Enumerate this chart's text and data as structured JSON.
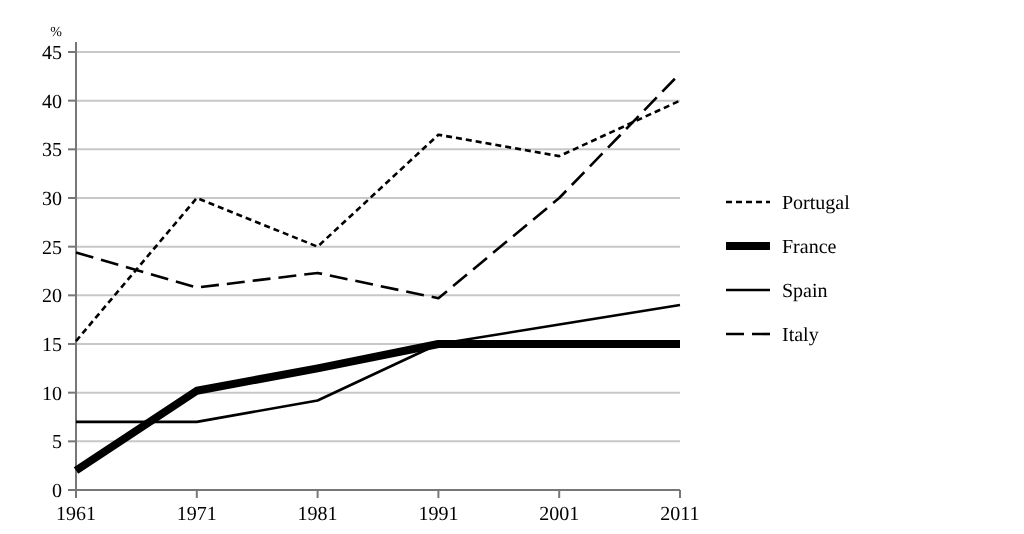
{
  "chart_data": {
    "type": "line",
    "ylabel": "%",
    "x": [
      1961,
      1971,
      1981,
      1991,
      2001,
      2011
    ],
    "xlim": [
      1961,
      2011
    ],
    "xticks": [
      1961,
      1971,
      1981,
      1991,
      2001,
      2011
    ],
    "ylim": [
      0,
      45
    ],
    "yticks": [
      0,
      5,
      10,
      15,
      20,
      25,
      30,
      35,
      40,
      45
    ],
    "grid": "y",
    "legend": "right",
    "series": [
      {
        "name": "Portugal",
        "color": "#000000",
        "line_style": "dotted",
        "values": [
          15.3,
          30,
          25,
          36.5,
          34.3,
          40
        ]
      },
      {
        "name": "France",
        "color": "#000000",
        "line_style": "solid",
        "values": [
          2,
          10.2,
          12.5,
          15,
          15,
          15
        ]
      },
      {
        "name": "Spain",
        "color": "#000000",
        "line_style": "solid",
        "values": [
          7,
          7,
          9.2,
          15,
          17,
          19
        ]
      },
      {
        "name": "Italy",
        "color": "#000000",
        "line_style": "dashed",
        "values": [
          24.4,
          20.8,
          22.3,
          19.7,
          30,
          42.8
        ]
      }
    ]
  }
}
